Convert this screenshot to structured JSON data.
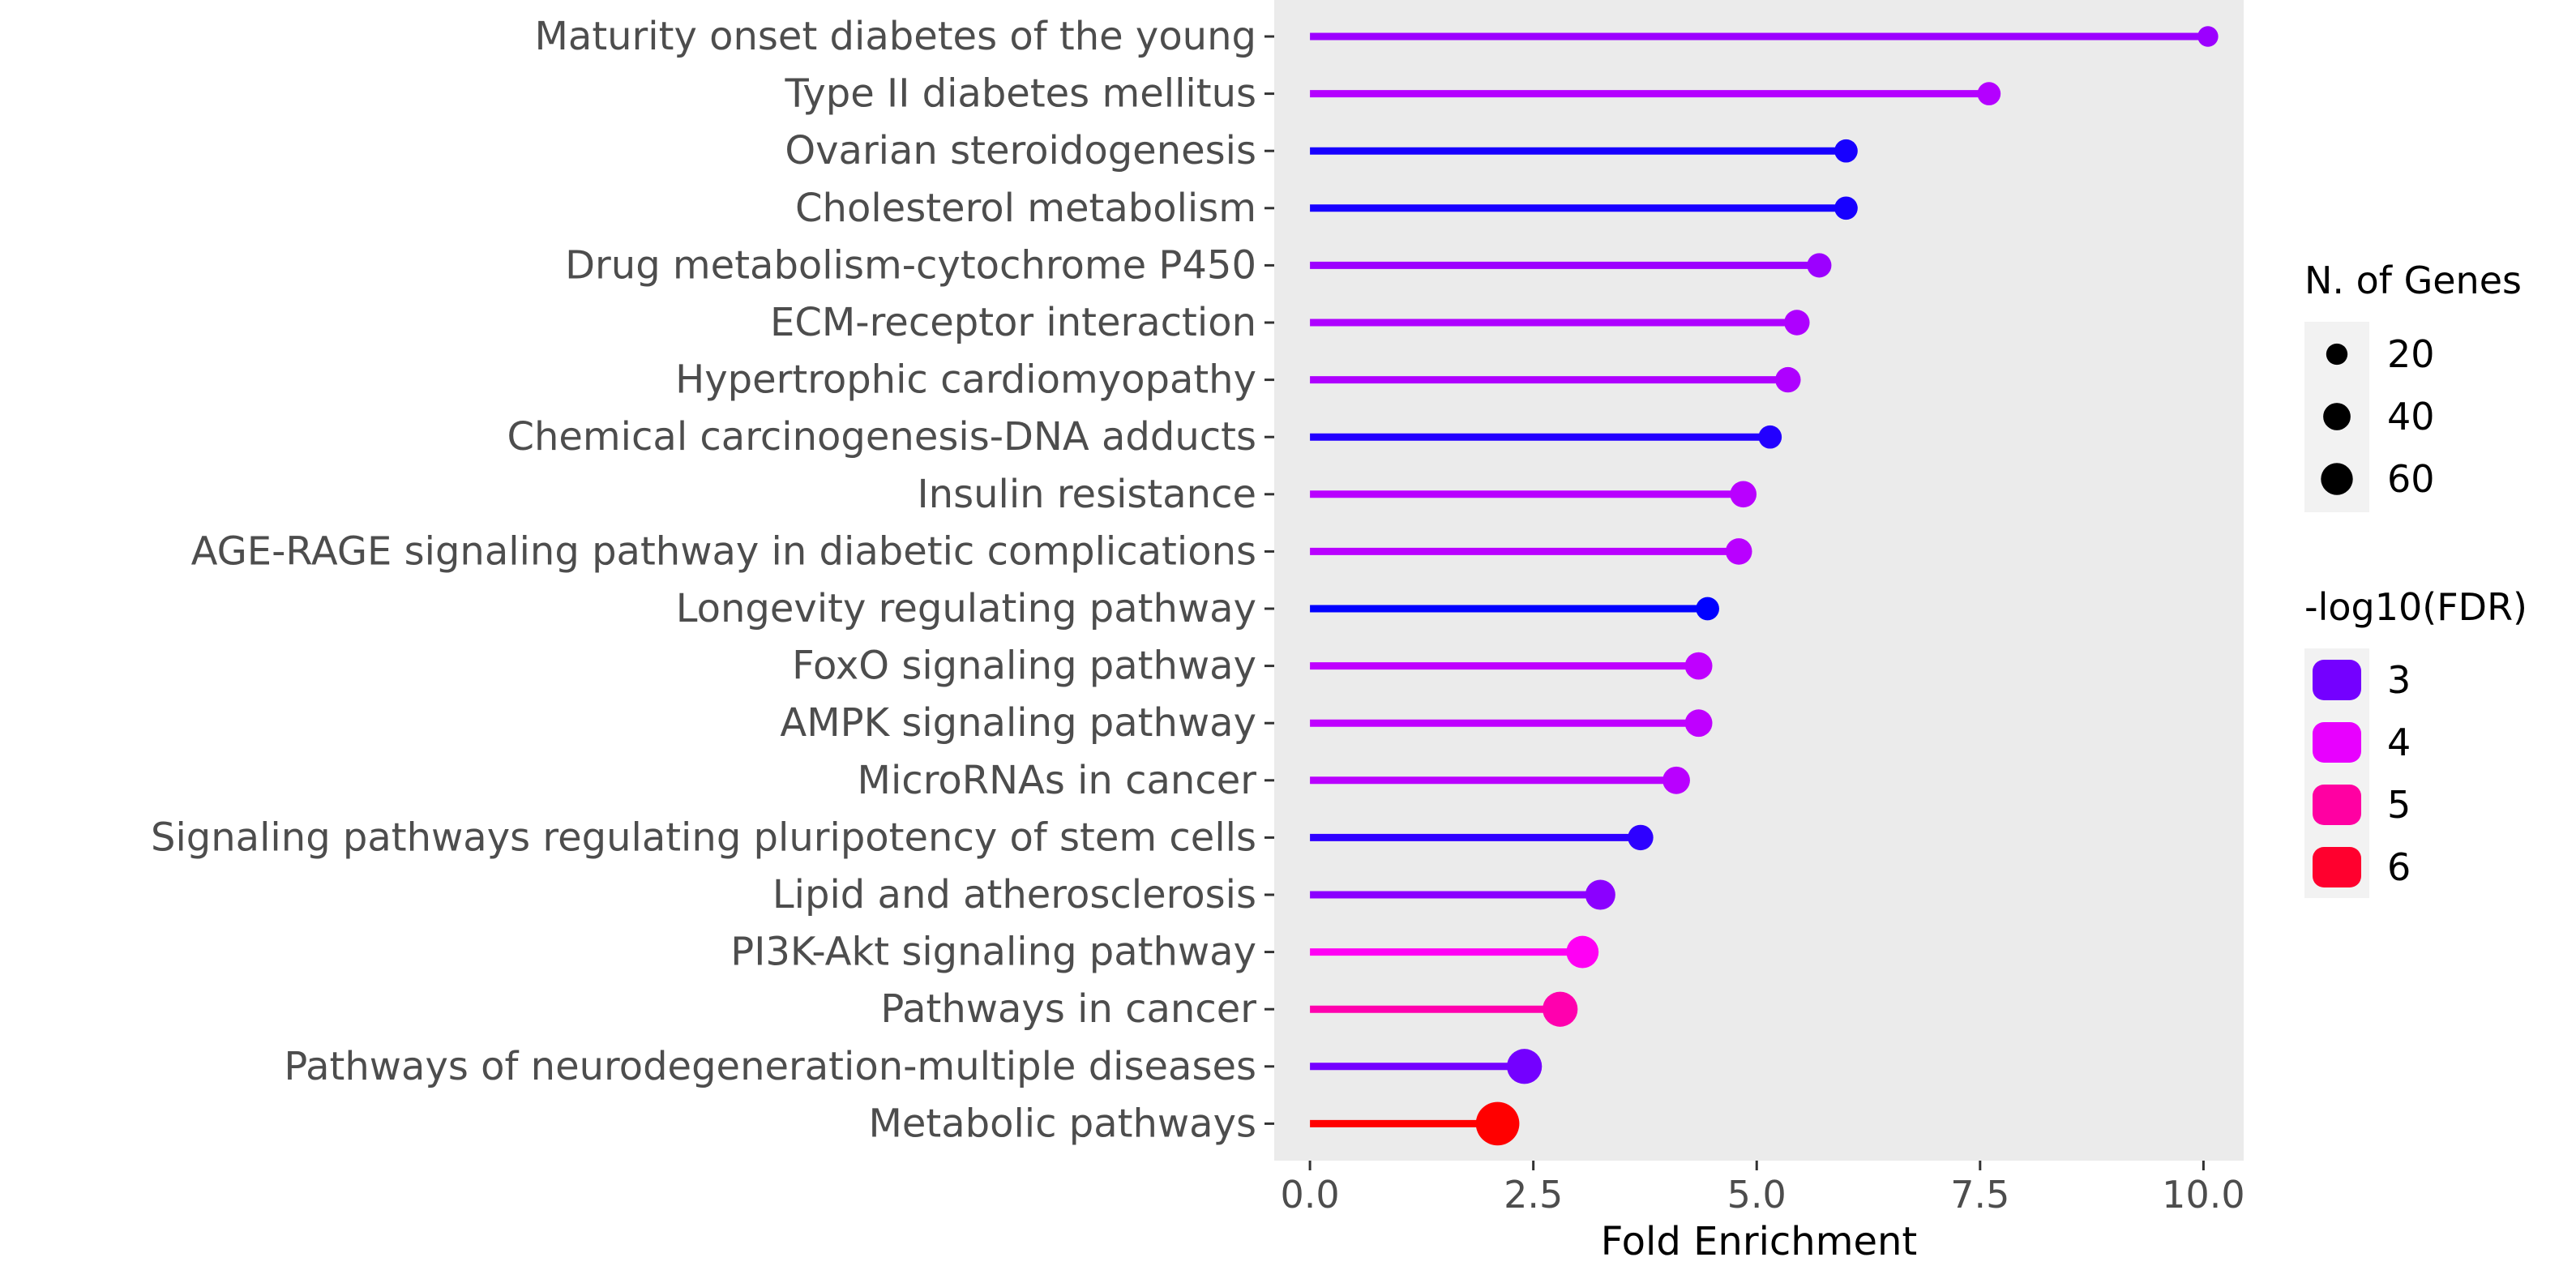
{
  "chart_data": {
    "type": "lollipop",
    "xlabel": "Fold Enrichment",
    "ylabel": "",
    "xlim": [
      -0.4,
      10.45
    ],
    "x_ticks": [
      0,
      2.5,
      5,
      7.5,
      10
    ],
    "x_tick_labels": [
      "0.0",
      "2.5",
      "5.0",
      "7.5",
      "10.0"
    ],
    "categories": [
      "Maturity onset diabetes of the young",
      "Type II diabetes mellitus",
      "Ovarian steroidogenesis",
      "Cholesterol metabolism",
      "Drug metabolism-cytochrome P450",
      "ECM-receptor interaction",
      "Hypertrophic cardiomyopathy",
      "Chemical carcinogenesis-DNA adducts",
      "Insulin resistance",
      "AGE-RAGE signaling pathway in diabetic complications",
      "Longevity regulating pathway",
      "FoxO signaling pathway",
      "AMPK signaling pathway",
      "MicroRNAs in cancer",
      "Signaling pathways regulating pluripotency of stem cells",
      "Lipid and atherosclerosis",
      "PI3K-Akt signaling pathway",
      "Pathways in cancer",
      "Pathways of neurodegeneration-multiple diseases",
      "Metabolic pathways"
    ],
    "fold_enrichment": [
      10.05,
      7.6,
      6.0,
      6.0,
      5.7,
      5.45,
      5.35,
      5.15,
      4.85,
      4.8,
      4.45,
      4.35,
      4.35,
      4.1,
      3.7,
      3.25,
      3.05,
      2.8,
      2.4,
      2.1
    ],
    "n_genes": [
      8,
      12,
      12,
      12,
      14,
      16,
      16,
      12,
      18,
      18,
      12,
      20,
      20,
      20,
      16,
      26,
      32,
      40,
      40,
      70
    ],
    "neg_log10_fdr": [
      3.35,
      3.55,
      2.2,
      2.2,
      3.35,
      3.5,
      3.5,
      2.3,
      3.6,
      3.6,
      2.0,
      3.65,
      3.65,
      3.6,
      2.4,
      3.2,
      4.3,
      4.9,
      3.0,
      6.4
    ],
    "legend": {
      "size_title": "N. of Genes",
      "size_values": [
        20,
        40,
        60
      ],
      "color_title": "-log10(FDR)",
      "color_values": [
        3,
        4,
        5,
        6
      ],
      "color_scale_low": "#0000ff",
      "color_scale_high": "#ff0000",
      "color_range": [
        2.0,
        6.4
      ]
    }
  }
}
